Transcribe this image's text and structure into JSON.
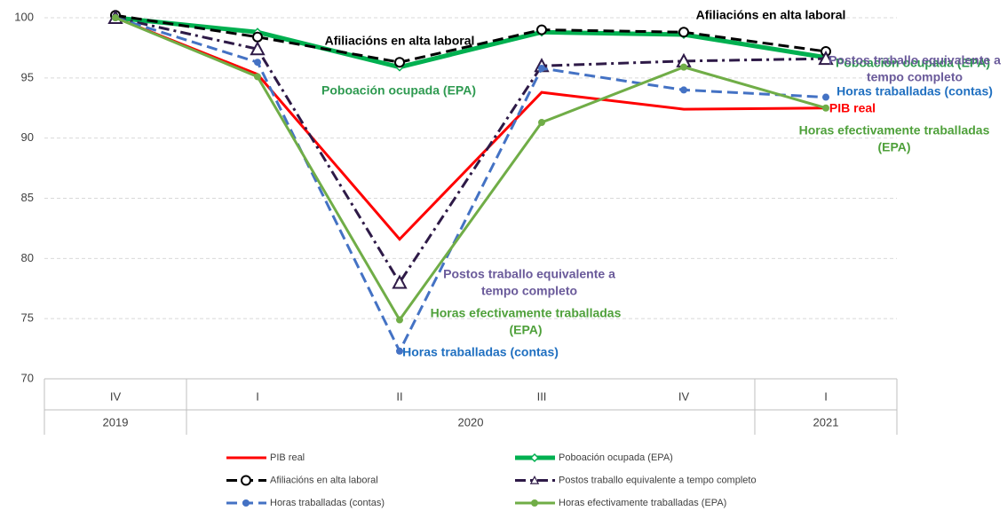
{
  "chart_data": {
    "type": "line",
    "categories": [
      "IV",
      "I",
      "II",
      "III",
      "IV",
      "I"
    ],
    "years": [
      "2019",
      "2020",
      "2020",
      "2020",
      "2020",
      "2021"
    ],
    "ylim": [
      70,
      100
    ],
    "yticks": [
      70,
      75,
      80,
      85,
      90,
      95,
      100
    ],
    "grid": true,
    "series": [
      {
        "name": "PIB real",
        "color": "#ff0000",
        "style": "solid",
        "linewidth": 3,
        "marker": "none",
        "values": [
          100,
          95.3,
          81.6,
          93.8,
          92.4,
          92.5
        ]
      },
      {
        "name": "Poboación ocupada (EPA)",
        "color": "#00b050",
        "style": "solid",
        "linewidth": 5,
        "marker": "diamond",
        "values": [
          100,
          98.8,
          95.9,
          98.8,
          98.6,
          96.7
        ]
      },
      {
        "name": "Afiliacións en alta laboral",
        "color": "#000000",
        "style": "dashed",
        "linewidth": 3,
        "marker": "circle",
        "values": [
          100.2,
          98.4,
          96.3,
          99.0,
          98.8,
          97.2
        ]
      },
      {
        "name": "Postos traballo equivalente a tempo completo",
        "color": "#2e1a47",
        "style": "dashdot",
        "linewidth": 3,
        "marker": "triangle",
        "values": [
          100,
          97.4,
          78.0,
          96.0,
          96.4,
          96.6
        ]
      },
      {
        "name": "Horas traballadas (contas)",
        "color": "#4472c4",
        "style": "dashed",
        "linewidth": 3,
        "marker": "dot",
        "values": [
          100,
          96.3,
          72.3,
          95.8,
          94.0,
          93.4
        ]
      },
      {
        "name": "Horas efectivamente traballadas (EPA)",
        "color": "#70ad47",
        "style": "solid",
        "linewidth": 3,
        "marker": "dot",
        "values": [
          100,
          95.1,
          74.9,
          91.3,
          95.9,
          92.5
        ]
      }
    ],
    "annotations": [
      {
        "lines": [
          "Afiliacións en alta laboral"
        ],
        "color": "#000000"
      },
      {
        "lines": [
          "Afiliacións en alta laboral"
        ],
        "color": "#000000"
      },
      {
        "lines": [
          "Poboación ocupada (EPA)"
        ],
        "color": "#2e9a50"
      },
      {
        "lines": [
          "Poboación ocupada (EPA)"
        ],
        "color": "#2e9a50"
      },
      {
        "lines": [
          "Postos traballo equivalente a",
          "tempo completo"
        ],
        "color": "#6a5a9a"
      },
      {
        "lines": [
          "Postos traballo equivalente a",
          "tempo completo"
        ],
        "color": "#6a5a9a"
      },
      {
        "lines": [
          "Horas traballadas (contas)"
        ],
        "color": "#1f6fc0"
      },
      {
        "lines": [
          "Horas traballadas (contas)"
        ],
        "color": "#1f6fc0"
      },
      {
        "lines": [
          "PIB real"
        ],
        "color": "#ff0000"
      },
      {
        "lines": [
          "Horas efectivamente traballadas",
          "(EPA)"
        ],
        "color": "#4ea03a"
      },
      {
        "lines": [
          "Horas efectivamente traballadas",
          "(EPA)"
        ],
        "color": "#4ea03a"
      }
    ]
  }
}
